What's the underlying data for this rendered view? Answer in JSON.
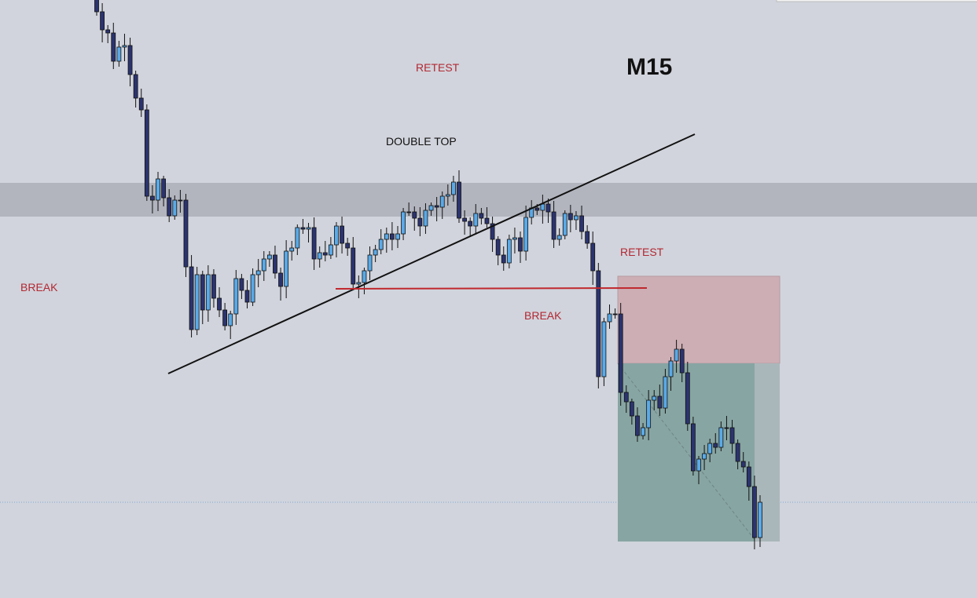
{
  "annotations": {
    "retest_top": "RETEST",
    "timeframe": "M15",
    "double_top": "DOUBLE TOP",
    "break_left": "BREAK",
    "retest_right": "RETEST",
    "break_right": "BREAK"
  }
}
